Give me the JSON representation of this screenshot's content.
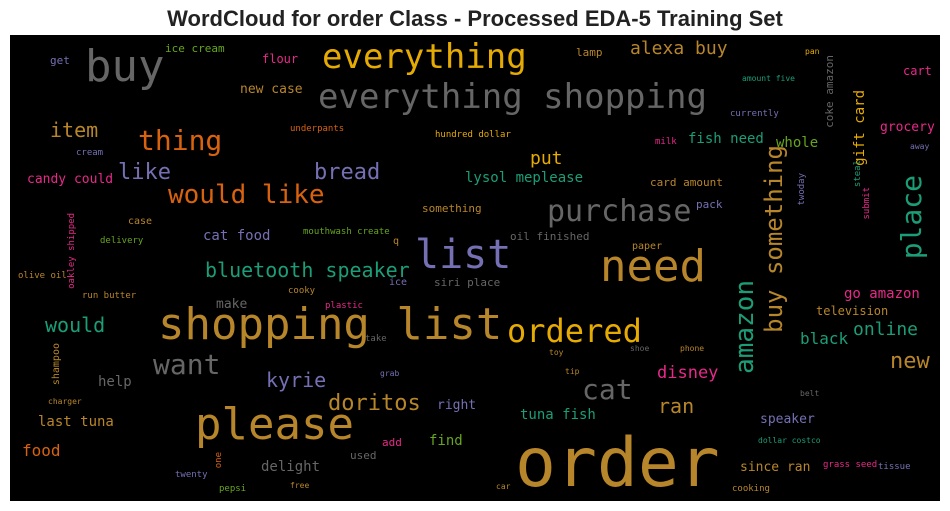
{
  "title": "WordCloud for order Class - Processed EDA-5 Training Set",
  "colors": {
    "background": "#000000",
    "gold": "#b8862a",
    "orange": "#d9620e",
    "purple": "#7570b3",
    "teal": "#1b9e77",
    "green": "#66a61e",
    "pink": "#e7298a",
    "gray": "#666666",
    "yellow": "#e6ab02"
  },
  "words": [
    {
      "id": "order",
      "text": "order"
    },
    {
      "id": "shopping_list",
      "text": "shopping list"
    },
    {
      "id": "please",
      "text": "please"
    },
    {
      "id": "need",
      "text": "need"
    },
    {
      "id": "list",
      "text": "list"
    },
    {
      "id": "buy",
      "text": "buy"
    },
    {
      "id": "everything_shopping",
      "text": "everything shopping"
    },
    {
      "id": "everything",
      "text": "everything"
    },
    {
      "id": "ordered",
      "text": "ordered"
    },
    {
      "id": "purchase",
      "text": "purchase"
    },
    {
      "id": "would_like",
      "text": "would like"
    },
    {
      "id": "buy_something",
      "text": "buy something"
    },
    {
      "id": "amazon",
      "text": "amazon"
    },
    {
      "id": "place",
      "text": "place"
    },
    {
      "id": "thing",
      "text": "thing"
    },
    {
      "id": "want",
      "text": "want"
    },
    {
      "id": "cat",
      "text": "cat"
    },
    {
      "id": "bluetooth_speaker",
      "text": "bluetooth speaker"
    },
    {
      "id": "doritos",
      "text": "doritos"
    },
    {
      "id": "kyrie",
      "text": "kyrie"
    },
    {
      "id": "bread",
      "text": "bread"
    },
    {
      "id": "like",
      "text": "like"
    },
    {
      "id": "item",
      "text": "item"
    },
    {
      "id": "would",
      "text": "would"
    },
    {
      "id": "new",
      "text": "new"
    },
    {
      "id": "alexa_buy",
      "text": "alexa buy"
    },
    {
      "id": "put",
      "text": "put"
    },
    {
      "id": "ran",
      "text": "ran"
    },
    {
      "id": "online",
      "text": "online"
    },
    {
      "id": "disney",
      "text": "disney"
    },
    {
      "id": "go_amazon",
      "text": "go amazon"
    },
    {
      "id": "black",
      "text": "black"
    },
    {
      "id": "lysol_meplease",
      "text": "lysol meplease"
    },
    {
      "id": "cat_food",
      "text": "cat food"
    },
    {
      "id": "tuna_fish",
      "text": "tuna fish"
    },
    {
      "id": "fish_need",
      "text": "fish need"
    },
    {
      "id": "whole",
      "text": "whole"
    },
    {
      "id": "gift_card",
      "text": "gift card"
    },
    {
      "id": "grocery",
      "text": "grocery"
    },
    {
      "id": "food",
      "text": "food"
    },
    {
      "id": "last_tuna",
      "text": "last tuna"
    },
    {
      "id": "help",
      "text": "help"
    },
    {
      "id": "delight",
      "text": "delight"
    },
    {
      "id": "find",
      "text": "find"
    },
    {
      "id": "right",
      "text": "right"
    },
    {
      "id": "speaker",
      "text": "speaker"
    },
    {
      "id": "since_ran",
      "text": "since ran"
    },
    {
      "id": "television",
      "text": "television"
    },
    {
      "id": "new_case",
      "text": "new case"
    },
    {
      "id": "candy_could",
      "text": "candy could"
    },
    {
      "id": "make",
      "text": "make"
    },
    {
      "id": "cart",
      "text": "cart"
    },
    {
      "id": "flour",
      "text": "flour"
    },
    {
      "id": "ice_cream",
      "text": "ice cream"
    },
    {
      "id": "get",
      "text": "get"
    },
    {
      "id": "lamp",
      "text": "lamp"
    },
    {
      "id": "card_amount",
      "text": "card amount"
    },
    {
      "id": "something",
      "text": "something"
    },
    {
      "id": "oil_finished",
      "text": "oil finished"
    },
    {
      "id": "pack",
      "text": "pack"
    },
    {
      "id": "paper",
      "text": "paper"
    },
    {
      "id": "siri_place",
      "text": "siri place"
    },
    {
      "id": "used",
      "text": "used"
    },
    {
      "id": "add",
      "text": "add"
    },
    {
      "id": "case",
      "text": "case"
    },
    {
      "id": "coke_amazon",
      "text": "coke amazon"
    },
    {
      "id": "shampoo",
      "text": "shampoo"
    },
    {
      "id": "oakley_shipped",
      "text": "oakley shipped"
    },
    {
      "id": "underpants",
      "text": "underpants"
    },
    {
      "id": "hundred_dollar",
      "text": "hundred dollar"
    },
    {
      "id": "milk",
      "text": "milk"
    },
    {
      "id": "currently",
      "text": "currently"
    },
    {
      "id": "cream",
      "text": "cream"
    },
    {
      "id": "away",
      "text": "away"
    },
    {
      "id": "amount_five",
      "text": "amount five"
    },
    {
      "id": "pan",
      "text": "pan"
    },
    {
      "id": "steal",
      "text": "steal"
    },
    {
      "id": "submit",
      "text": "submit"
    },
    {
      "id": "twoday",
      "text": "twoday"
    },
    {
      "id": "delivery",
      "text": "delivery"
    },
    {
      "id": "mouthwash_create",
      "text": "mouthwash create"
    },
    {
      "id": "q",
      "text": "q"
    },
    {
      "id": "olive_oil",
      "text": "olive oil"
    },
    {
      "id": "run_butter",
      "text": "run butter"
    },
    {
      "id": "cooky",
      "text": "cooky"
    },
    {
      "id": "ice",
      "text": "ice"
    },
    {
      "id": "plastic",
      "text": "plastic"
    },
    {
      "id": "take",
      "text": "take"
    },
    {
      "id": "toy",
      "text": "toy"
    },
    {
      "id": "shoe",
      "text": "shoe"
    },
    {
      "id": "phone",
      "text": "phone"
    },
    {
      "id": "grab",
      "text": "grab"
    },
    {
      "id": "tip",
      "text": "tip"
    },
    {
      "id": "charger",
      "text": "charger"
    },
    {
      "id": "belt",
      "text": "belt"
    },
    {
      "id": "dollar_costco",
      "text": "dollar costco"
    },
    {
      "id": "grass_seed",
      "text": "grass seed"
    },
    {
      "id": "tissue",
      "text": "tissue"
    },
    {
      "id": "twenty",
      "text": "twenty"
    },
    {
      "id": "pepsi",
      "text": "pepsi"
    },
    {
      "id": "free",
      "text": "free"
    },
    {
      "id": "car",
      "text": "car"
    },
    {
      "id": "cooking",
      "text": "cooking"
    },
    {
      "id": "one",
      "text": "one"
    }
  ]
}
